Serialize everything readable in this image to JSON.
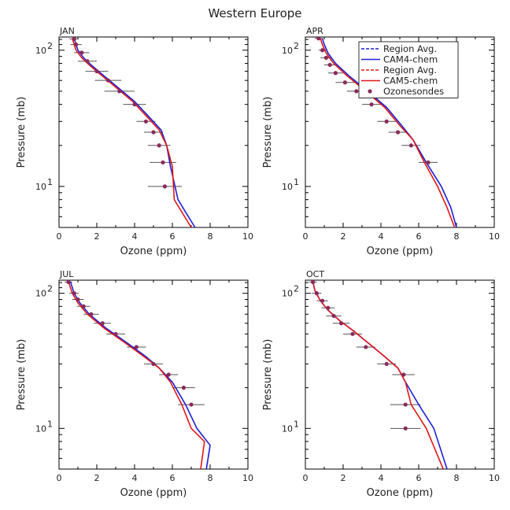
{
  "chart_data": {
    "type": "line",
    "title": "Western Europe",
    "xlabel": "Ozone (ppm)",
    "ylabel": "Pressure (mb)",
    "xlim": [
      0,
      10
    ],
    "ylim": [
      125,
      5
    ],
    "yscale": "log",
    "xticks": [
      "0",
      "2",
      "4",
      "6",
      "8",
      "10"
    ],
    "ytick_labels": {
      "major": [
        "10",
        "10"
      ],
      "exponents": [
        "1",
        "2"
      ]
    },
    "legend": [
      {
        "name": "Region Avg.",
        "style": "dashed",
        "color": "#1f1fd6"
      },
      {
        "name": "CAM4-chem",
        "style": "solid",
        "color": "#1f1fd6"
      },
      {
        "name": "Region Avg.",
        "style": "dashed",
        "color": "#e01818"
      },
      {
        "name": "CAM5-chem",
        "style": "solid",
        "color": "#e01818"
      },
      {
        "name": "Ozonesondes",
        "style": "dot",
        "color": "#8b2a5a"
      }
    ],
    "panels": [
      {
        "label": "JAN",
        "cam4": [
          [
            0.8,
            122
          ],
          [
            1.0,
            100
          ],
          [
            1.3,
            88
          ],
          [
            1.7,
            78
          ],
          [
            2.2,
            68
          ],
          [
            3.0,
            55
          ],
          [
            4.0,
            42
          ],
          [
            4.8,
            32
          ],
          [
            5.4,
            26
          ],
          [
            5.7,
            20
          ],
          [
            5.9,
            14
          ],
          [
            6.3,
            8
          ],
          [
            7.2,
            5
          ]
        ],
        "cam5": [
          [
            0.7,
            122
          ],
          [
            0.9,
            100
          ],
          [
            1.2,
            88
          ],
          [
            1.6,
            78
          ],
          [
            2.1,
            68
          ],
          [
            2.9,
            55
          ],
          [
            3.9,
            42
          ],
          [
            4.7,
            32
          ],
          [
            5.3,
            26
          ],
          [
            5.7,
            20
          ],
          [
            6.0,
            14
          ],
          [
            6.1,
            8
          ],
          [
            7.0,
            5
          ]
        ],
        "sondes": [
          [
            0.8,
            121,
            0.25
          ],
          [
            0.9,
            110,
            0.3
          ],
          [
            1.2,
            96,
            0.4
          ],
          [
            1.5,
            83,
            0.5
          ],
          [
            2.0,
            70,
            0.6
          ],
          [
            2.6,
            60,
            0.7
          ],
          [
            3.2,
            50,
            0.8
          ],
          [
            4.0,
            40,
            0.6
          ],
          [
            4.6,
            30,
            0.5
          ],
          [
            5.0,
            25,
            0.5
          ],
          [
            5.3,
            20,
            0.6
          ],
          [
            5.5,
            15,
            0.7
          ],
          [
            5.6,
            10,
            0.9
          ]
        ]
      },
      {
        "label": "APR",
        "cam4": [
          [
            0.9,
            122
          ],
          [
            1.0,
            110
          ],
          [
            1.2,
            95
          ],
          [
            1.6,
            80
          ],
          [
            2.3,
            65
          ],
          [
            3.3,
            50
          ],
          [
            4.3,
            38
          ],
          [
            5.1,
            28
          ],
          [
            5.7,
            22
          ],
          [
            6.4,
            15
          ],
          [
            7.2,
            10
          ],
          [
            7.7,
            7
          ],
          [
            8.0,
            5
          ]
        ],
        "cam5": [
          [
            0.8,
            122
          ],
          [
            0.9,
            110
          ],
          [
            1.1,
            95
          ],
          [
            1.5,
            80
          ],
          [
            2.2,
            65
          ],
          [
            3.2,
            50
          ],
          [
            4.2,
            38
          ],
          [
            5.0,
            28
          ],
          [
            5.7,
            22
          ],
          [
            6.3,
            15
          ],
          [
            7.0,
            10
          ],
          [
            7.5,
            7
          ],
          [
            7.9,
            5
          ]
        ],
        "sondes": [
          [
            0.7,
            122,
            0.2
          ],
          [
            0.9,
            100,
            0.2
          ],
          [
            1.1,
            88,
            0.3
          ],
          [
            1.3,
            78,
            0.3
          ],
          [
            1.6,
            68,
            0.4
          ],
          [
            2.1,
            58,
            0.5
          ],
          [
            2.7,
            50,
            0.5
          ],
          [
            3.5,
            40,
            0.5
          ],
          [
            4.3,
            30,
            0.5
          ],
          [
            4.9,
            25,
            0.5
          ],
          [
            5.6,
            20,
            0.5
          ],
          [
            6.5,
            15,
            0.5
          ]
        ]
      },
      {
        "label": "JUL",
        "cam4": [
          [
            0.6,
            122
          ],
          [
            0.8,
            100
          ],
          [
            1.1,
            85
          ],
          [
            1.6,
            70
          ],
          [
            2.5,
            55
          ],
          [
            3.6,
            43
          ],
          [
            4.6,
            34
          ],
          [
            5.3,
            28
          ],
          [
            6.0,
            22
          ],
          [
            6.7,
            15
          ],
          [
            7.3,
            10
          ],
          [
            8.0,
            7.5
          ],
          [
            7.8,
            5
          ]
        ],
        "cam5": [
          [
            0.5,
            122
          ],
          [
            0.7,
            100
          ],
          [
            1.0,
            85
          ],
          [
            1.5,
            70
          ],
          [
            2.4,
            55
          ],
          [
            3.5,
            43
          ],
          [
            4.5,
            34
          ],
          [
            5.3,
            28
          ],
          [
            5.9,
            22
          ],
          [
            6.5,
            15
          ],
          [
            7.0,
            10
          ],
          [
            7.7,
            8
          ],
          [
            7.5,
            5
          ]
        ],
        "sondes": [
          [
            0.5,
            121,
            0.2
          ],
          [
            0.8,
            100,
            0.25
          ],
          [
            1.0,
            90,
            0.3
          ],
          [
            1.3,
            80,
            0.35
          ],
          [
            1.7,
            70,
            0.4
          ],
          [
            2.3,
            60,
            0.45
          ],
          [
            3.0,
            50,
            0.5
          ],
          [
            4.1,
            40,
            0.5
          ],
          [
            5.0,
            30,
            0.5
          ],
          [
            5.8,
            25,
            0.5
          ],
          [
            6.6,
            20,
            0.6
          ],
          [
            7.0,
            15,
            0.7
          ]
        ]
      },
      {
        "label": "OCT",
        "cam4": [
          [
            0.4,
            122
          ],
          [
            0.5,
            105
          ],
          [
            0.8,
            88
          ],
          [
            1.2,
            75
          ],
          [
            1.8,
            63
          ],
          [
            2.6,
            52
          ],
          [
            3.4,
            42
          ],
          [
            4.2,
            34
          ],
          [
            4.9,
            28
          ],
          [
            5.3,
            22
          ],
          [
            6.0,
            15
          ],
          [
            6.8,
            10
          ],
          [
            7.5,
            5
          ]
        ],
        "cam5": [
          [
            0.4,
            122
          ],
          [
            0.5,
            105
          ],
          [
            0.8,
            88
          ],
          [
            1.2,
            75
          ],
          [
            1.8,
            63
          ],
          [
            2.6,
            52
          ],
          [
            3.4,
            42
          ],
          [
            4.2,
            34
          ],
          [
            4.9,
            28
          ],
          [
            5.3,
            22
          ],
          [
            5.6,
            15
          ],
          [
            6.4,
            10
          ],
          [
            7.3,
            5
          ]
        ],
        "sondes": [
          [
            0.4,
            121,
            0.2
          ],
          [
            0.6,
            100,
            0.25
          ],
          [
            0.9,
            88,
            0.3
          ],
          [
            1.2,
            78,
            0.35
          ],
          [
            1.5,
            68,
            0.4
          ],
          [
            1.9,
            60,
            0.45
          ],
          [
            2.5,
            50,
            0.5
          ],
          [
            3.2,
            40,
            0.5
          ],
          [
            4.3,
            30,
            0.5
          ],
          [
            5.2,
            25,
            0.6
          ],
          [
            5.3,
            15,
            0.8
          ],
          [
            5.3,
            10,
            0.8
          ]
        ]
      }
    ]
  }
}
